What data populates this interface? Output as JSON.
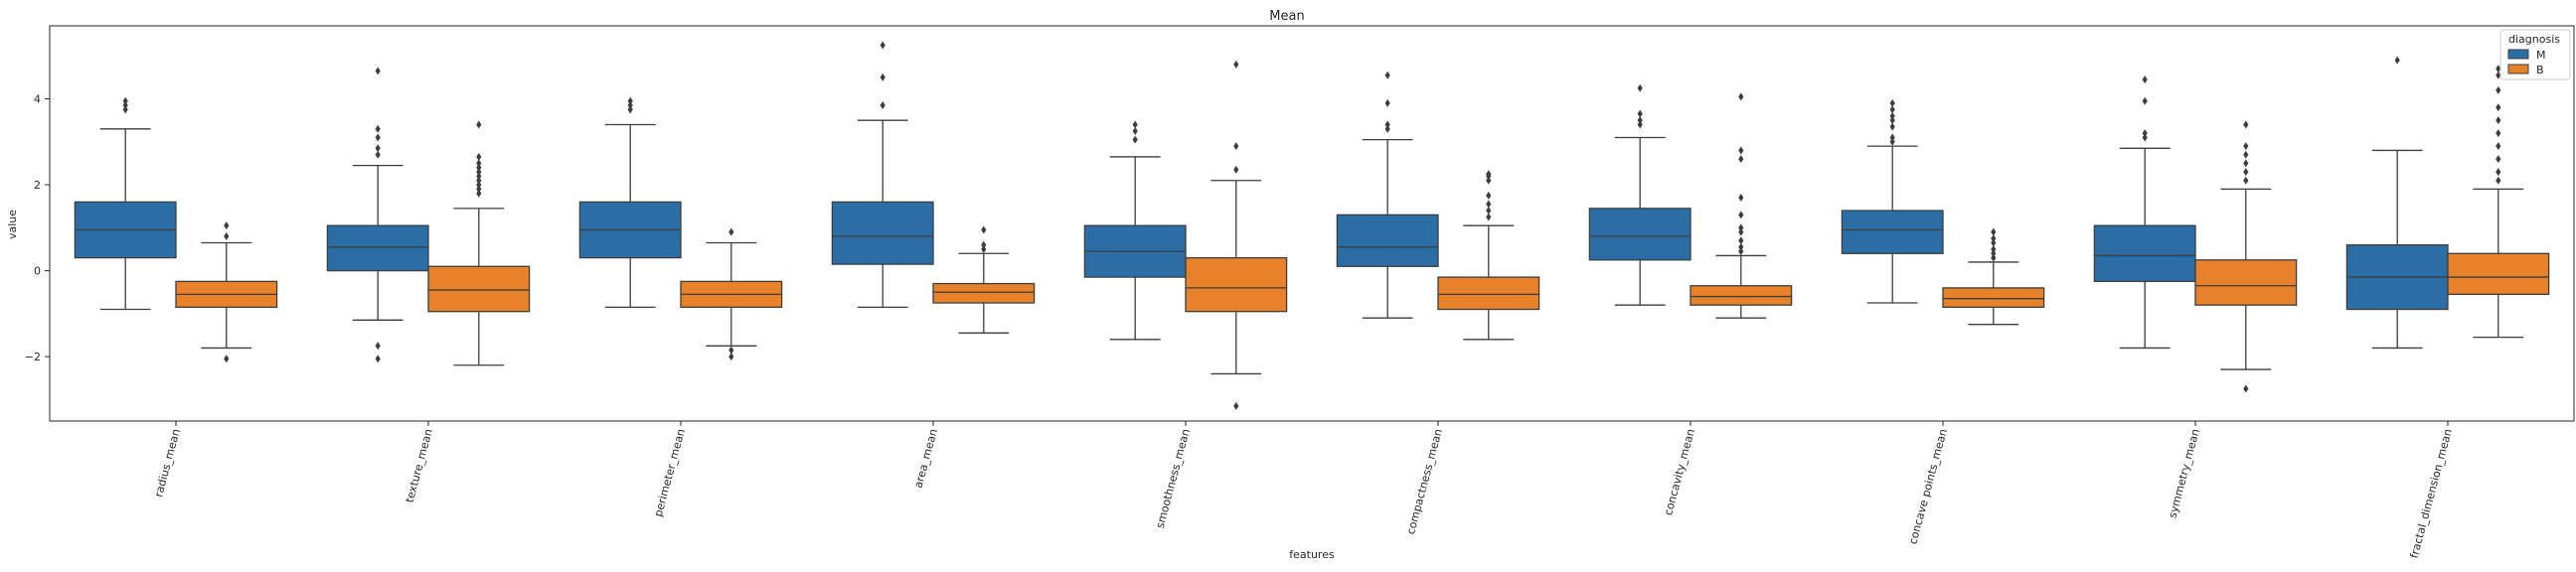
{
  "chart_data": {
    "type": "box",
    "title": "Mean",
    "xlabel": "features",
    "ylabel": "value",
    "ylim": [
      -3.5,
      5.7
    ],
    "yticks": [
      -2,
      0,
      2,
      4
    ],
    "ytick_labels": [
      "−2",
      "0",
      "2",
      "4"
    ],
    "grid": false,
    "legend": {
      "title": "diagnosis",
      "placement": "top-right",
      "entries": [
        {
          "name": "M",
          "color": "#1f77b4"
        },
        {
          "name": "B",
          "color": "#ff7f0e"
        }
      ]
    },
    "categories": [
      "radius_mean",
      "texture_mean",
      "perimeter_mean",
      "area_mean",
      "smoothness_mean",
      "compactness_mean",
      "concavity_mean",
      "concave points_mean",
      "symmetry_mean",
      "fractal_dimension_mean"
    ],
    "series": [
      {
        "name": "M",
        "color": "#2b6ea6",
        "boxes": [
          {
            "whislo": -0.9,
            "q1": 0.3,
            "med": 0.95,
            "q3": 1.6,
            "whishi": 3.3,
            "fliers": [
              3.75,
              3.85,
              3.95
            ]
          },
          {
            "whislo": -1.15,
            "q1": 0.0,
            "med": 0.55,
            "q3": 1.05,
            "whishi": 2.45,
            "fliers": [
              -2.05,
              -1.75,
              2.7,
              2.85,
              3.1,
              3.3,
              4.65
            ]
          },
          {
            "whislo": -0.85,
            "q1": 0.3,
            "med": 0.95,
            "q3": 1.6,
            "whishi": 3.4,
            "fliers": [
              3.75,
              3.85,
              3.95
            ]
          },
          {
            "whislo": -0.85,
            "q1": 0.15,
            "med": 0.8,
            "q3": 1.6,
            "whishi": 3.5,
            "fliers": [
              3.85,
              4.5,
              5.25
            ]
          },
          {
            "whislo": -1.6,
            "q1": -0.15,
            "med": 0.45,
            "q3": 1.05,
            "whishi": 2.65,
            "fliers": [
              3.05,
              3.25,
              3.4
            ]
          },
          {
            "whislo": -1.1,
            "q1": 0.1,
            "med": 0.55,
            "q3": 1.3,
            "whishi": 3.05,
            "fliers": [
              3.3,
              3.4,
              3.9,
              4.55
            ]
          },
          {
            "whislo": -0.8,
            "q1": 0.25,
            "med": 0.8,
            "q3": 1.45,
            "whishi": 3.1,
            "fliers": [
              3.4,
              3.5,
              3.65,
              4.25
            ]
          },
          {
            "whislo": -0.75,
            "q1": 0.4,
            "med": 0.95,
            "q3": 1.4,
            "whishi": 2.9,
            "fliers": [
              3.0,
              3.1,
              3.35,
              3.5,
              3.6,
              3.75,
              3.9
            ]
          },
          {
            "whislo": -1.8,
            "q1": -0.25,
            "med": 0.35,
            "q3": 1.05,
            "whishi": 2.85,
            "fliers": [
              3.1,
              3.2,
              3.95,
              4.45
            ]
          },
          {
            "whislo": -1.8,
            "q1": -0.9,
            "med": -0.15,
            "q3": 0.6,
            "whishi": 2.8,
            "fliers": [
              4.9
            ]
          }
        ]
      },
      {
        "name": "B",
        "color": "#e8822a",
        "boxes": [
          {
            "whislo": -1.8,
            "q1": -0.85,
            "med": -0.55,
            "q3": -0.25,
            "whishi": 0.65,
            "fliers": [
              -2.05,
              0.8,
              1.05
            ]
          },
          {
            "whislo": -2.2,
            "q1": -0.95,
            "med": -0.45,
            "q3": 0.1,
            "whishi": 1.45,
            "fliers": [
              1.8,
              1.9,
              2.0,
              2.1,
              2.2,
              2.3,
              2.4,
              2.5,
              2.65,
              3.4
            ]
          },
          {
            "whislo": -1.75,
            "q1": -0.85,
            "med": -0.55,
            "q3": -0.25,
            "whishi": 0.65,
            "fliers": [
              -2.0,
              -1.85,
              0.9
            ]
          },
          {
            "whislo": -1.45,
            "q1": -0.75,
            "med": -0.5,
            "q3": -0.3,
            "whishi": 0.4,
            "fliers": [
              0.5,
              0.6,
              0.95
            ]
          },
          {
            "whislo": -2.4,
            "q1": -0.95,
            "med": -0.4,
            "q3": 0.3,
            "whishi": 2.1,
            "fliers": [
              -3.15,
              2.35,
              2.9,
              4.8
            ]
          },
          {
            "whislo": -1.6,
            "q1": -0.9,
            "med": -0.55,
            "q3": -0.15,
            "whishi": 1.05,
            "fliers": [
              1.25,
              1.4,
              1.55,
              1.75,
              2.1,
              2.2,
              2.25
            ]
          },
          {
            "whislo": -1.1,
            "q1": -0.8,
            "med": -0.6,
            "q3": -0.35,
            "whishi": 0.35,
            "fliers": [
              0.45,
              0.55,
              0.7,
              0.9,
              1.0,
              1.3,
              1.7,
              2.6,
              2.8,
              4.05
            ]
          },
          {
            "whislo": -1.25,
            "q1": -0.85,
            "med": -0.65,
            "q3": -0.4,
            "whishi": 0.2,
            "fliers": [
              0.3,
              0.4,
              0.5,
              0.65,
              0.75,
              0.9
            ]
          },
          {
            "whislo": -2.3,
            "q1": -0.8,
            "med": -0.35,
            "q3": 0.25,
            "whishi": 1.9,
            "fliers": [
              -2.75,
              2.1,
              2.3,
              2.5,
              2.7,
              2.9,
              3.4
            ]
          },
          {
            "whislo": -1.55,
            "q1": -0.55,
            "med": -0.15,
            "q3": 0.4,
            "whishi": 1.9,
            "fliers": [
              2.1,
              2.3,
              2.6,
              2.9,
              3.2,
              3.5,
              3.8,
              4.2,
              4.55,
              4.7
            ]
          }
        ]
      }
    ]
  }
}
